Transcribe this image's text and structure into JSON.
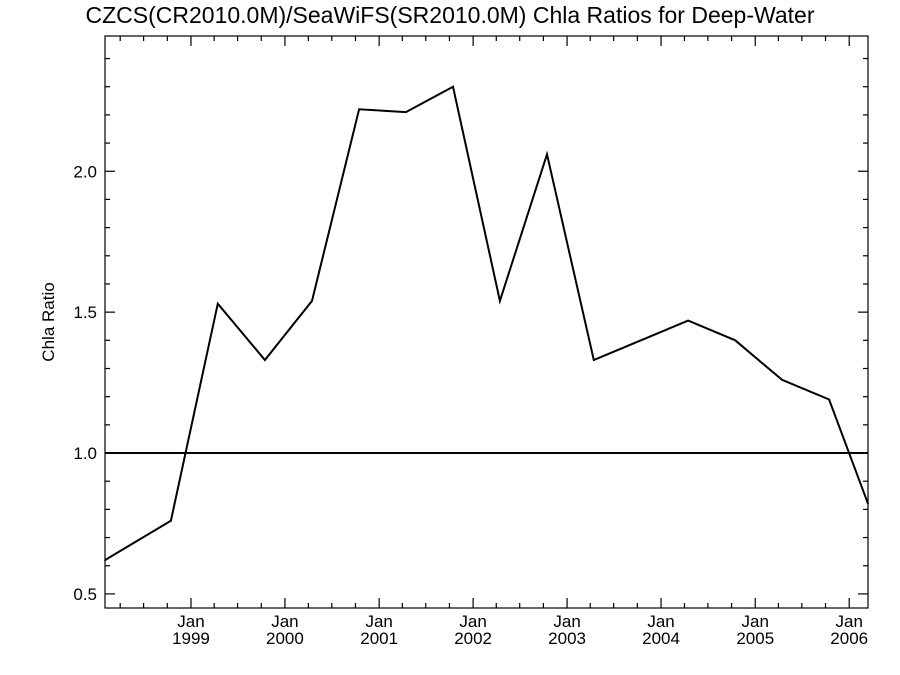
{
  "chart_data": {
    "type": "line",
    "title": "CZCS(CR2010.0M)/SeaWiFS(SR2010.0M)  Chla Ratios for Deep-Water",
    "xlabel": "",
    "ylabel": "Chla Ratio",
    "xlim": [
      "1998-02-01",
      "2006-03-15"
    ],
    "ylim": [
      0.45,
      2.48
    ],
    "y_ticks": [
      "0.5",
      "1.0",
      "1.5",
      "2.0"
    ],
    "x_ticks": [
      {
        "month": "Jan",
        "year": "1999"
      },
      {
        "month": "Jan",
        "year": "2000"
      },
      {
        "month": "Jan",
        "year": "2001"
      },
      {
        "month": "Jan",
        "year": "2002"
      },
      {
        "month": "Jan",
        "year": "2003"
      },
      {
        "month": "Jan",
        "year": "2004"
      },
      {
        "month": "Jan",
        "year": "2005"
      },
      {
        "month": "Jan",
        "year": "2006"
      }
    ],
    "reference_line": 1.0,
    "grid": false,
    "series": [
      {
        "color": "#000000",
        "x": [
          "1998-02-01",
          "1998-10-15",
          "1999-04-15",
          "1999-10-15",
          "2000-04-15",
          "2000-10-15",
          "2001-04-15",
          "2001-10-15",
          "2002-04-15",
          "2002-10-15",
          "2003-04-15",
          "2003-10-15",
          "2004-04-15",
          "2004-10-15",
          "2005-04-15",
          "2005-10-15",
          "2006-03-15"
        ],
        "y": [
          0.62,
          0.76,
          1.53,
          1.33,
          1.54,
          2.22,
          2.21,
          2.3,
          1.54,
          2.06,
          1.33,
          1.4,
          1.47,
          1.4,
          1.26,
          1.19,
          0.82
        ]
      }
    ]
  }
}
